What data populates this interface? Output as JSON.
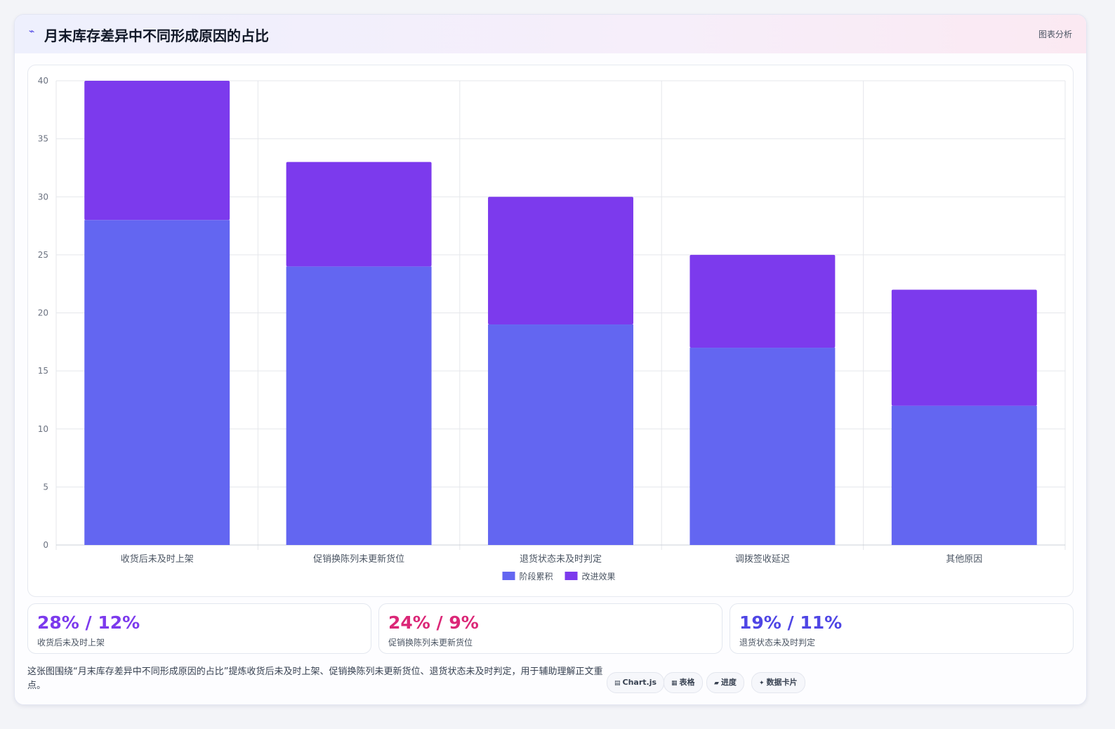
{
  "header": {
    "icon": "chart-line-icon",
    "title": "月末库存差异中不同形成原因的占比",
    "tag": "图表分析"
  },
  "chart_data": {
    "type": "bar",
    "stacked": true,
    "categories": [
      "收货后未及时上架",
      "促销换陈列未更新货位",
      "退货状态未及时判定",
      "调拨签收延迟",
      "其他原因"
    ],
    "series": [
      {
        "name": "阶段累积",
        "values": [
          28,
          24,
          19,
          17,
          12
        ],
        "color": "#6366f1"
      },
      {
        "name": "改进效果",
        "values": [
          12,
          9,
          11,
          8,
          10
        ],
        "color": "#7c3aed"
      }
    ],
    "ylim": [
      0,
      40
    ],
    "yticks": [
      0,
      5,
      10,
      15,
      20,
      25,
      30,
      35,
      40
    ],
    "grid": true,
    "legend": "bottom"
  },
  "stats": [
    {
      "value": "28% / 12%",
      "label": "收货后未及时上架",
      "color": "#7c3aed"
    },
    {
      "value": "24% / 9%",
      "label": "促销换陈列未更新货位",
      "color": "#db2777"
    },
    {
      "value": "19% / 11%",
      "label": "退货状态未及时判定",
      "color": "#4f46e5"
    }
  ],
  "note": "这张图围绕“月末库存差异中不同形成原因的占比”提炼收货后未及时上架、促销换陈列未更新货位、退货状态未及时判定，用于辅助理解正文重点。",
  "pills": [
    {
      "icon": "▤",
      "label": "Chart.js"
    },
    {
      "icon": "▦",
      "label": "表格"
    },
    {
      "icon": "▰",
      "label": "进度"
    },
    {
      "icon": "✦",
      "label": "数据卡片"
    }
  ]
}
